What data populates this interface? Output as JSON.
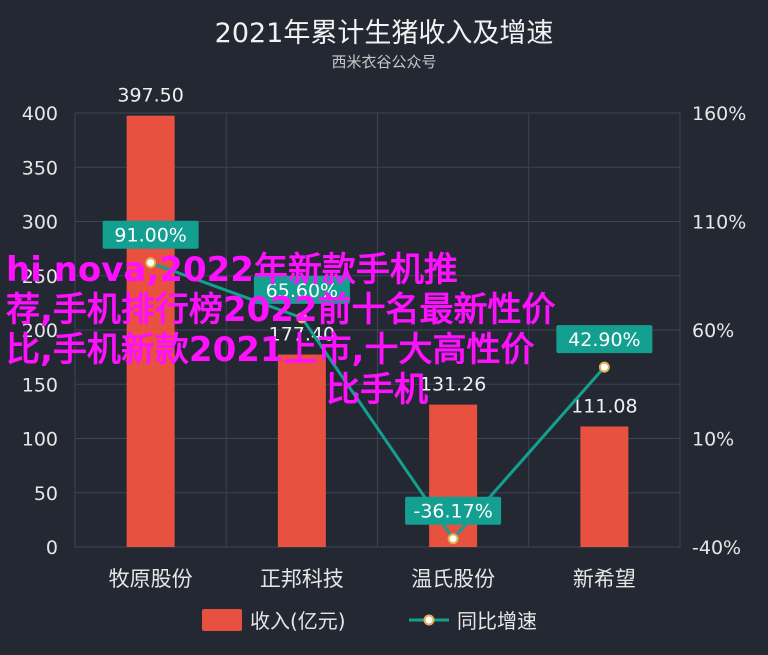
{
  "chart_data": {
    "type": "bar",
    "title": "2021年累计生猪收入及增速",
    "subtitle": "西米衣谷公众号",
    "categories": [
      "牧原股份",
      "正邦科技",
      "温氏股份",
      "新希望"
    ],
    "series": [
      {
        "name": "收入(亿元)",
        "type": "bar",
        "axis": "left",
        "values": [
          397.5,
          177.4,
          131.26,
          111.08
        ],
        "value_labels": [
          "397.50",
          "177.40",
          "131.26",
          "111.08"
        ]
      },
      {
        "name": "同比增速",
        "type": "line",
        "axis": "right",
        "values": [
          91.0,
          65.6,
          -36.17,
          42.9
        ],
        "value_labels": [
          "91.00%",
          "65.60%",
          "-36.17%",
          "42.90%"
        ]
      }
    ],
    "y_left": {
      "min": 0,
      "max": 400,
      "ticks": [
        "0",
        "50",
        "100",
        "150",
        "200",
        "250",
        "300",
        "350",
        "400"
      ]
    },
    "y_right": {
      "min": -40,
      "max": 160,
      "ticks": [
        "-40%",
        "10%",
        "60%",
        "110%",
        "160%"
      ],
      "tick_values": [
        -40,
        10,
        60,
        110,
        160
      ]
    },
    "grid": true,
    "legend": "bottom",
    "colors": {
      "bar": "#e8503f",
      "line": "#14a090",
      "background": "#232833"
    }
  },
  "overlay_text": [
    "hi nova,2022年新款手机推",
    "荐,手机排行榜2022前十名最新性价",
    "比,手机新款2021上市,十大高性价",
    "比手机"
  ]
}
